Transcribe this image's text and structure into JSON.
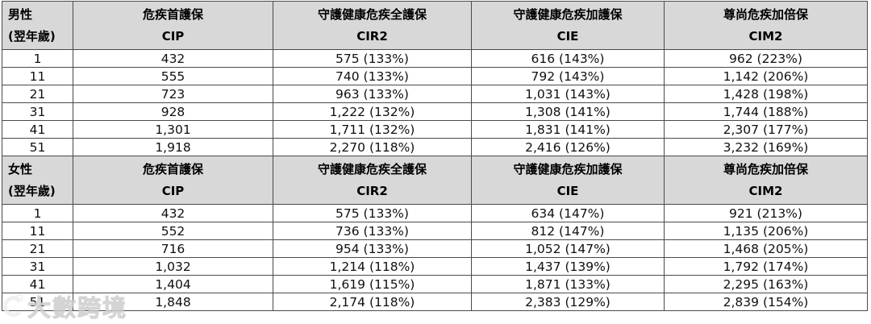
{
  "watermark": {
    "logo": "watermark-logo",
    "text": "大數跨境"
  },
  "tables": [
    {
      "corner": {
        "line1": "男性",
        "line2": "(翌年歲)"
      },
      "columns": [
        {
          "name": "危疾首護保",
          "code": "CIP"
        },
        {
          "name": "守護健康危疾全護保",
          "code": "CIR2"
        },
        {
          "name": "守護健康危疾加護保",
          "code": "CIE"
        },
        {
          "name": "尊尚危疾加倍保",
          "code": "CIM2"
        }
      ],
      "rows": [
        {
          "cells": [
            "1",
            "432",
            "575 (133%)",
            "616 (143%)",
            "962 (223%)"
          ]
        },
        {
          "cells": [
            "11",
            "555",
            "740 (133%)",
            "792 (143%)",
            "1,142 (206%)"
          ]
        },
        {
          "cells": [
            "21",
            "723",
            "963 (133%)",
            "1,031 (143%)",
            "1,428 (198%)"
          ]
        },
        {
          "cells": [
            "31",
            "928",
            "1,222 (132%)",
            "1,308 (141%)",
            "1,744 (188%)"
          ]
        },
        {
          "cells": [
            "41",
            "1,301",
            "1,711 (132%)",
            "1,831 (141%)",
            "2,307 (177%)"
          ]
        },
        {
          "cells": [
            "51",
            "1,918",
            "2,270 (118%)",
            "2,416 (126%)",
            "3,232 (169%)"
          ]
        }
      ]
    },
    {
      "corner": {
        "line1": "女性",
        "line2": "(翌年歲)"
      },
      "columns": [
        {
          "name": "危疾首護保",
          "code": "CIP"
        },
        {
          "name": "守護健康危疾全護保",
          "code": "CIR2"
        },
        {
          "name": "守護健康危疾加護保",
          "code": "CIE"
        },
        {
          "name": "尊尚危疾加倍保",
          "code": "CIM2"
        }
      ],
      "rows": [
        {
          "cells": [
            "1",
            "432",
            "575 (133%)",
            "634 (147%)",
            "921 (213%)"
          ]
        },
        {
          "cells": [
            "11",
            "552",
            "736 (133%)",
            "812 (147%)",
            "1,135 (206%)"
          ]
        },
        {
          "cells": [
            "21",
            "716",
            "954 (133%)",
            "1,052 (147%)",
            "1,468 (205%)"
          ]
        },
        {
          "cells": [
            "31",
            "1,032",
            "1,214 (118%)",
            "1,437 (139%)",
            "1,792 (174%)"
          ]
        },
        {
          "cells": [
            "41",
            "1,404",
            "1,619 (115%)",
            "1,871 (133%)",
            "2,295 (163%)"
          ]
        },
        {
          "cells": [
            "51",
            "1,848",
            "2,174 (118%)",
            "2,383 (129%)",
            "2,839 (154%)"
          ]
        }
      ]
    }
  ]
}
